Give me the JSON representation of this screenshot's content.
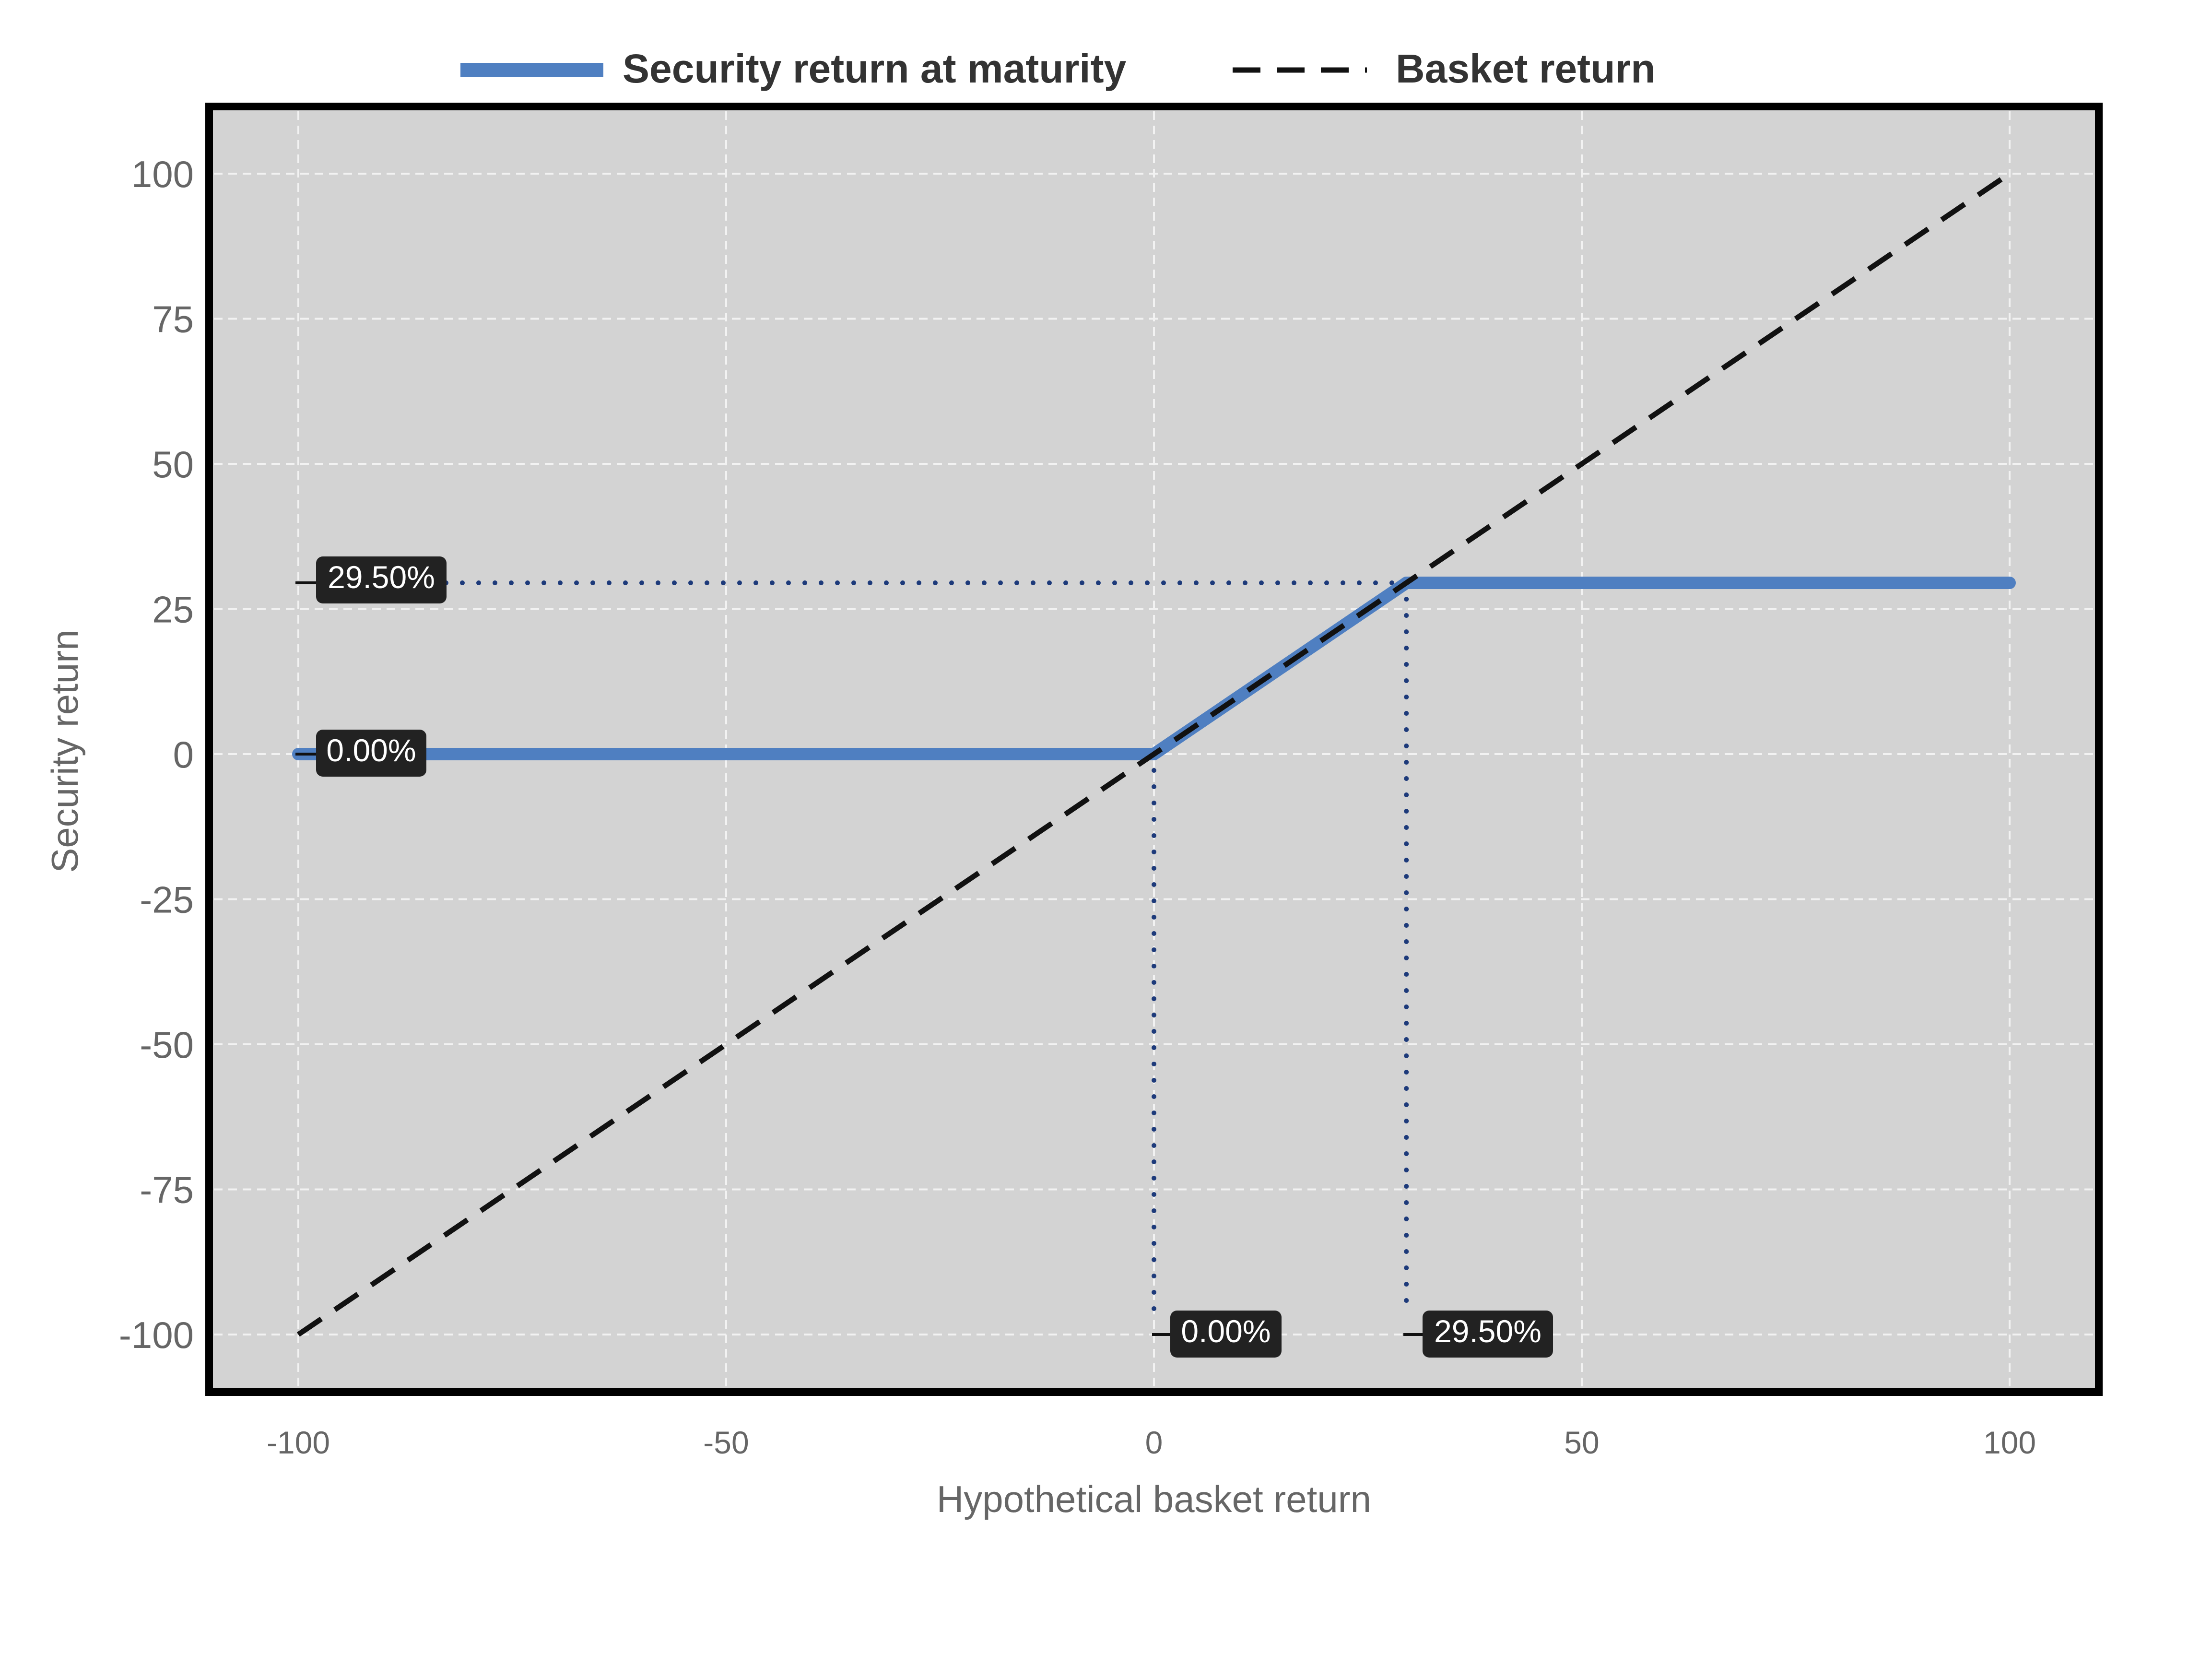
{
  "chart_data": {
    "type": "line",
    "xlabel": "Hypothetical basket return",
    "ylabel": "Security return",
    "xlim": [
      -110,
      110
    ],
    "ylim": [
      -110,
      110
    ],
    "xticks": [
      "-100",
      "-50",
      "0",
      "50",
      "100"
    ],
    "yticks": [
      "100",
      "75",
      "50",
      "25",
      "0",
      "-25",
      "-50",
      "-75",
      "-100"
    ],
    "grid": true,
    "legend_position": "top",
    "series": [
      {
        "name": "Security return at maturity",
        "style": "solid",
        "color": "#4f7fc1",
        "x": [
          -100,
          0,
          29.5,
          100
        ],
        "y": [
          0,
          0,
          29.5,
          29.5
        ]
      },
      {
        "name": "Basket return",
        "style": "dashed",
        "color": "#111111",
        "x": [
          -100,
          100
        ],
        "y": [
          -100,
          100
        ]
      }
    ],
    "annotations": [
      {
        "axis": "y",
        "value": 29.5,
        "x_at": 29.5,
        "label": "29.50%"
      },
      {
        "axis": "y",
        "value": 0,
        "x_at": 0,
        "label": "0.00%"
      },
      {
        "axis": "x",
        "value": 0,
        "label": "0.00%"
      },
      {
        "axis": "x",
        "value": 29.5,
        "label": "29.50%"
      }
    ],
    "colors": {
      "plot_background": "#d3d3d3",
      "gridline": "#f2f2f2",
      "frame": "#000000",
      "guide": "#1d3a7a",
      "label_box": "#222222",
      "label_text": "#ffffff",
      "axis_text": "#666666",
      "legend_text": "#333333"
    }
  }
}
